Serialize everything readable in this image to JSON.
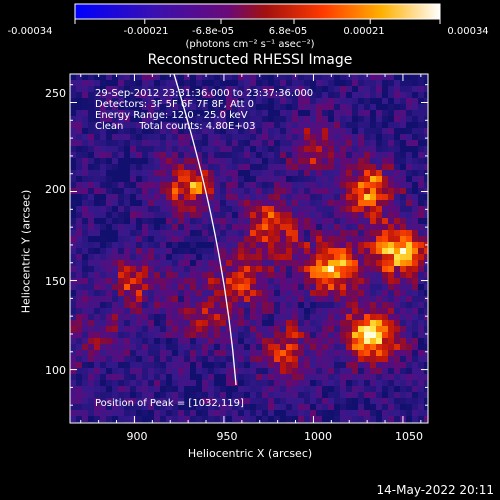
{
  "colorbar": {
    "tick_labels": [
      "-0.00034",
      "-0.00021",
      "-6.8e-05",
      "6.8e-05",
      "0.00021",
      "0.00034"
    ],
    "units": "(photons cm⁻² s⁻¹ asec⁻²)",
    "range": [
      -0.00034,
      0.00034
    ]
  },
  "chart_data": {
    "type": "heatmap",
    "title": "Reconstructed RHESSI Image",
    "xlabel": "Heliocentric X (arcsec)",
    "ylabel": "Heliocentric Y (arcsec)",
    "xlim": [
      864,
      1064
    ],
    "ylim": [
      70,
      266
    ],
    "x_ticks": [
      900,
      950,
      1000,
      1050
    ],
    "y_ticks": [
      100,
      150,
      200,
      250
    ],
    "x_tick_labels": [
      "900",
      "950",
      "1000",
      "1050"
    ],
    "y_tick_labels": [
      "100",
      "150",
      "200",
      "250"
    ],
    "annotations": [
      "29-Sep-2012 23:31:36.000 to 23:37:36.000",
      "Detectors: 3F 5F 6F 7F 8F, Att 0",
      "Energy Range: 12.0 - 25.0 keV",
      "Clean     Total counts: 4.80E+03"
    ],
    "peak_label": "Position of Peak = [1032,119]",
    "peak_position": [
      1032,
      119
    ],
    "bright_sources": [
      {
        "x": 1032,
        "y": 119,
        "intensity": 1.0
      },
      {
        "x": 1010,
        "y": 157,
        "intensity": 0.85
      },
      {
        "x": 1048,
        "y": 166,
        "intensity": 0.85
      },
      {
        "x": 1030,
        "y": 200,
        "intensity": 0.75
      },
      {
        "x": 977,
        "y": 180,
        "intensity": 0.7
      },
      {
        "x": 930,
        "y": 203,
        "intensity": 0.7
      },
      {
        "x": 960,
        "y": 150,
        "intensity": 0.55
      },
      {
        "x": 900,
        "y": 150,
        "intensity": 0.5
      },
      {
        "x": 985,
        "y": 110,
        "intensity": 0.55
      },
      {
        "x": 940,
        "y": 130,
        "intensity": 0.45
      },
      {
        "x": 1000,
        "y": 225,
        "intensity": 0.45
      },
      {
        "x": 880,
        "y": 120,
        "intensity": 0.3
      }
    ]
  },
  "footer": {
    "timestamp": "14-May-2022 20:11"
  }
}
